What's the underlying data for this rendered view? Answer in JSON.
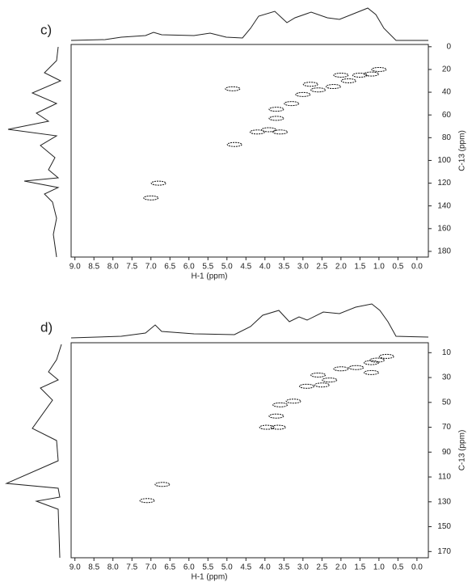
{
  "chart_data": [
    {
      "type": "scatter",
      "label": "c)",
      "x_label": "H-1 (ppm)",
      "y_label": "C-13 (ppm)",
      "x": [
        4.85,
        6.8,
        7.0,
        4.8,
        4.2,
        3.9,
        3.6,
        3.7,
        3.7,
        3.3,
        3.0,
        2.6,
        2.2,
        1.8,
        1.5,
        1.2,
        1.0,
        2.8,
        2.0
      ],
      "y": [
        37,
        120,
        133,
        86,
        75,
        73,
        75,
        63,
        55,
        50,
        42,
        38,
        35,
        30,
        25,
        24,
        20,
        33,
        25
      ],
      "color": "#111111",
      "xlim": [
        9.1,
        -0.3
      ],
      "ylim": [
        -2,
        185
      ],
      "xticks": [
        {
          "value": 9,
          "label": "9.0"
        },
        8.5,
        {
          "value": 8,
          "label": "8.0"
        },
        7.5,
        {
          "value": 7,
          "label": "7.0"
        },
        6.5,
        {
          "value": 6,
          "label": "6.0"
        },
        5.5,
        {
          "value": 5,
          "label": "5.0"
        },
        4.5,
        {
          "value": 4,
          "label": "4.0"
        },
        3.5,
        {
          "value": 3,
          "label": "3.0"
        },
        2.5,
        {
          "value": 2,
          "label": "2.0"
        },
        1.5,
        {
          "value": 1,
          "label": "1.0"
        },
        0.5,
        {
          "value": 0,
          "label": "0.0"
        }
      ],
      "yticks": [
        0,
        20,
        40,
        60,
        80,
        100,
        120,
        140,
        160,
        180
      ]
    },
    {
      "type": "scatter",
      "label": "d)",
      "x_label": "H-1 (ppm)",
      "y_label": "C-13 (ppm)",
      "x": [
        6.7,
        7.1,
        3.95,
        3.65,
        3.7,
        3.6,
        3.25,
        2.9,
        2.5,
        2.6,
        2.3,
        2.0,
        1.6,
        1.2,
        1.05,
        0.8,
        1.2
      ],
      "y": [
        116,
        129,
        70,
        70,
        61,
        52,
        49,
        37,
        36,
        28,
        32,
        23,
        22,
        18,
        16,
        13,
        26
      ],
      "color": "#111111",
      "xlim": [
        9.1,
        -0.3
      ],
      "ylim": [
        2,
        175
      ],
      "xticks": [
        {
          "value": 9,
          "label": "9.0"
        },
        8.5,
        {
          "value": 8,
          "label": "8.0"
        },
        7.5,
        {
          "value": 7,
          "label": "7.0"
        },
        6.5,
        {
          "value": 6,
          "label": "6.0"
        },
        5.5,
        {
          "value": 5,
          "label": "5.0"
        },
        4.5,
        {
          "value": 4,
          "label": "4.0"
        },
        3.5,
        {
          "value": 3,
          "label": "3.0"
        },
        2.5,
        {
          "value": 2,
          "label": "2.0"
        },
        1.5,
        {
          "value": 1,
          "label": "1.0"
        },
        0.5,
        {
          "value": 0,
          "label": "0.0"
        }
      ],
      "yticks": [
        10,
        30,
        50,
        70,
        90,
        110,
        130,
        150,
        170
      ]
    }
  ]
}
